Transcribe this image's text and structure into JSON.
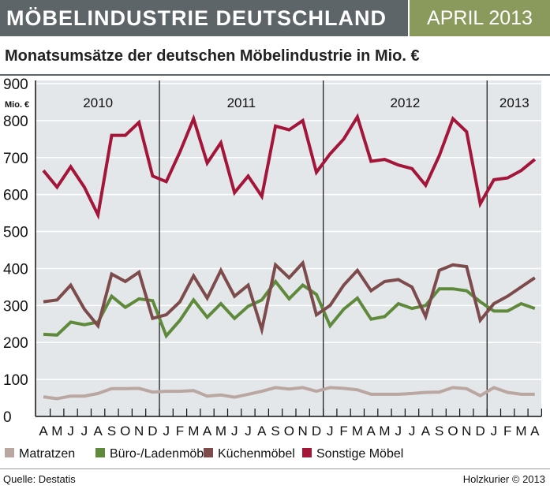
{
  "header": {
    "title": "MÖBELINDUSTRIE DEUTSCHLAND",
    "date": "APRIL 2013"
  },
  "subtitle": "Monatsumsätze der deutschen Möbelindustrie in Mio. €",
  "footer": {
    "source": "Quelle: Destatis",
    "credit": "Holzkurier © 2013"
  },
  "colors": {
    "header_bg": "#5d6568",
    "date_bg": "#8a9a5d",
    "plot_bg": "#e3e7ea"
  },
  "chart_data": {
    "type": "line",
    "ylabel": "Mio. €",
    "ylim": [
      0,
      900
    ],
    "yticks": [
      0,
      100,
      200,
      300,
      400,
      500,
      600,
      700,
      800,
      900
    ],
    "grid": true,
    "legend": "bottom",
    "x": [
      "A",
      "M",
      "J",
      "J",
      "A",
      "S",
      "O",
      "N",
      "D",
      "J",
      "F",
      "M",
      "A",
      "M",
      "J",
      "J",
      "A",
      "S",
      "O",
      "N",
      "D",
      "J",
      "F",
      "M",
      "A",
      "M",
      "J",
      "J",
      "A",
      "S",
      "O",
      "N",
      "D",
      "J",
      "F",
      "M",
      "A"
    ],
    "years": [
      {
        "label": "2010",
        "start": 0,
        "end": 8
      },
      {
        "label": "2011",
        "start": 9,
        "end": 20
      },
      {
        "label": "2012",
        "start": 21,
        "end": 32
      },
      {
        "label": "2013",
        "start": 33,
        "end": 36
      }
    ],
    "series": [
      {
        "name": "Matratzen",
        "color": "#bba7a2",
        "values": [
          53,
          48,
          55,
          55,
          62,
          75,
          75,
          76,
          66,
          68,
          68,
          70,
          55,
          58,
          52,
          60,
          68,
          78,
          74,
          78,
          68,
          78,
          76,
          72,
          60,
          60,
          60,
          62,
          65,
          66,
          78,
          75,
          56,
          78,
          65,
          60,
          60
        ]
      },
      {
        "name": "Büro-/Ladenmöbel",
        "color": "#5f8a3b",
        "values": [
          222,
          220,
          255,
          248,
          255,
          325,
          295,
          318,
          313,
          218,
          260,
          315,
          268,
          305,
          265,
          298,
          315,
          365,
          318,
          355,
          330,
          245,
          290,
          320,
          263,
          270,
          305,
          292,
          300,
          345,
          345,
          340,
          310,
          285,
          285,
          305,
          292
        ]
      },
      {
        "name": "Küchenmöbel",
        "color": "#7d4b4b",
        "values": [
          310,
          315,
          355,
          290,
          245,
          385,
          365,
          390,
          265,
          275,
          310,
          380,
          320,
          395,
          325,
          355,
          235,
          410,
          375,
          415,
          275,
          300,
          355,
          395,
          340,
          365,
          370,
          350,
          270,
          395,
          410,
          405,
          260,
          305,
          325,
          350,
          375
        ]
      },
      {
        "name": "Sonstige Möbel",
        "color": "#a3163a",
        "values": [
          665,
          620,
          675,
          620,
          545,
          760,
          760,
          795,
          650,
          635,
          715,
          805,
          685,
          740,
          605,
          650,
          595,
          785,
          775,
          800,
          660,
          710,
          750,
          810,
          690,
          695,
          680,
          670,
          625,
          705,
          805,
          770,
          575,
          640,
          645,
          665,
          695
        ]
      }
    ]
  }
}
